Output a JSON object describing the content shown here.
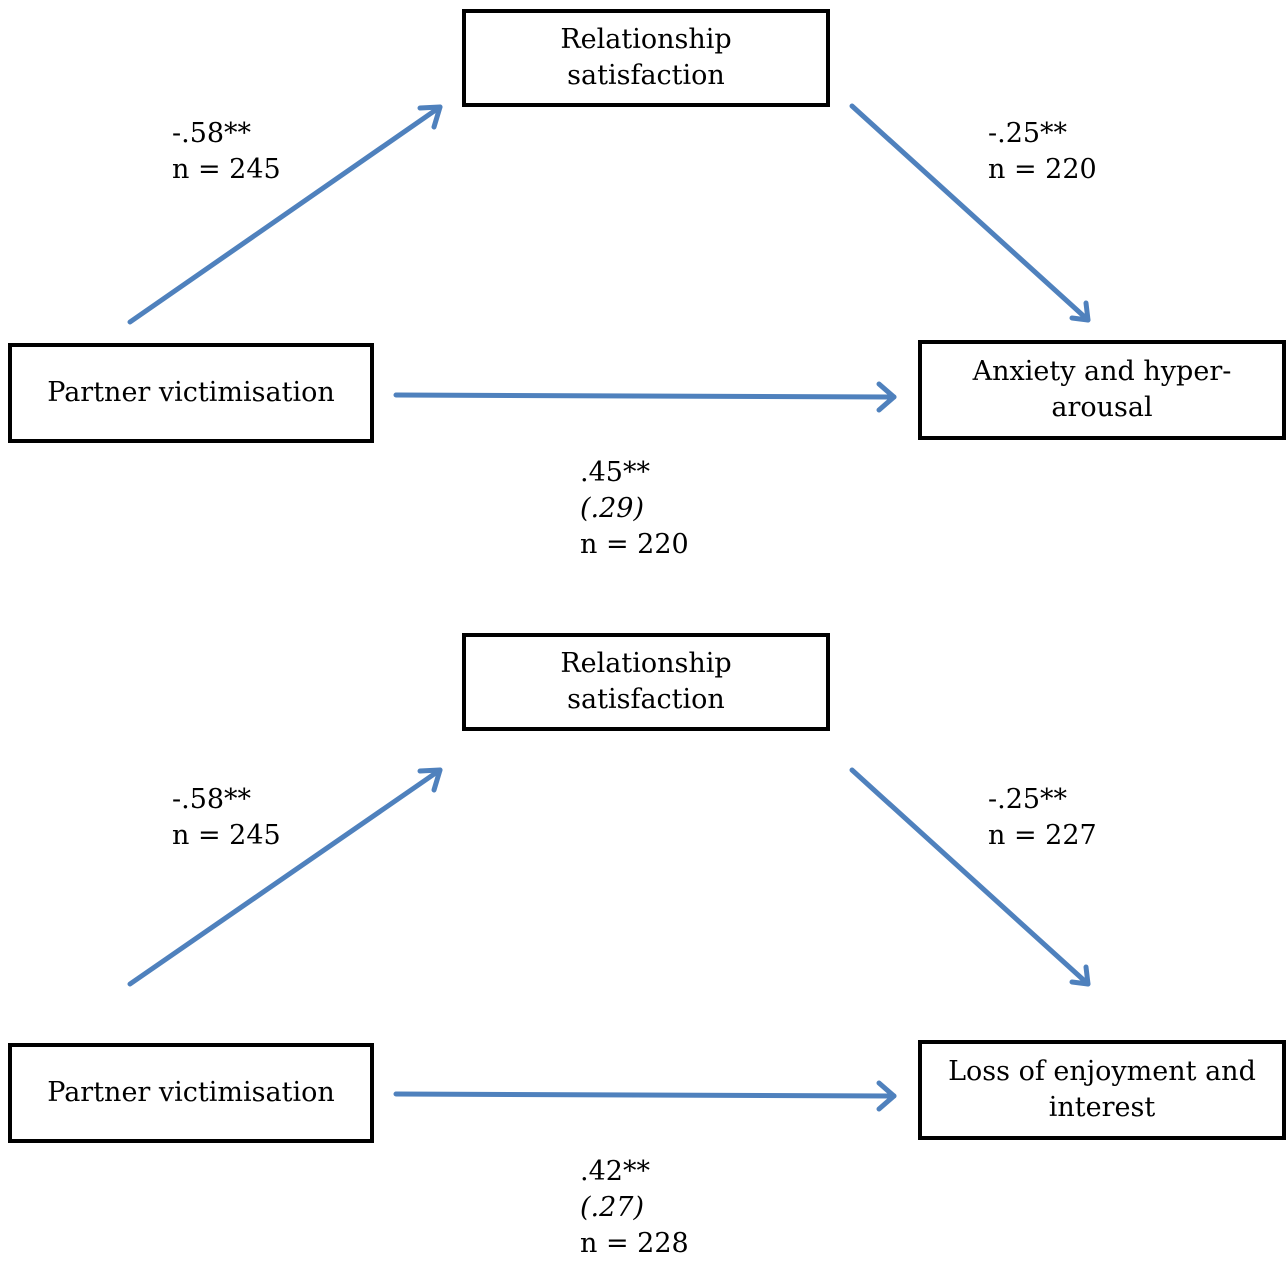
{
  "colors": {
    "arrow": "#4f81bd",
    "box_border": "#000000"
  },
  "diagrams": [
    {
      "mediator": {
        "line1": "Relationship",
        "line2": "satisfaction"
      },
      "predictor": {
        "text": "Partner victimisation"
      },
      "outcome": {
        "line1": "Anxiety and hyper-",
        "line2": "arousal"
      },
      "path_a": {
        "coef": "-.58**",
        "n": "n = 245"
      },
      "path_b": {
        "coef": "-.25**",
        "n": "n = 220"
      },
      "path_c": {
        "coef": ".45**",
        "indirect": "(.29)",
        "n": "n = 220"
      }
    },
    {
      "mediator": {
        "line1": "Relationship",
        "line2": "satisfaction"
      },
      "predictor": {
        "text": "Partner victimisation"
      },
      "outcome": {
        "line1": "Loss of enjoyment and",
        "line2": "interest"
      },
      "path_a": {
        "coef": "-.58**",
        "n": "n = 245"
      },
      "path_b": {
        "coef": "-.25**",
        "n": "n = 227"
      },
      "path_c": {
        "coef": ".42**",
        "indirect": "(.27)",
        "n": "n = 228"
      }
    }
  ]
}
